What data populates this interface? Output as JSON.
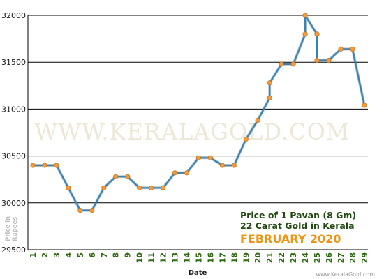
{
  "chart_data": {
    "type": "line",
    "title_lines": [
      "Price of 1 Pavan (8 Gm)",
      "22 Carat Gold in Kerala"
    ],
    "subtitle": "FEBRUARY 2020",
    "xlabel": "Date",
    "ylabel_lines": [
      "Price in",
      "Rupees"
    ],
    "ylim": [
      29500,
      32000
    ],
    "yticks": [
      "29500",
      "30000",
      "30500",
      "31000",
      "31500",
      "32000"
    ],
    "xticks": [
      "1",
      "2",
      "3",
      "4",
      "5",
      "6",
      "7",
      "8",
      "9",
      "10",
      "11",
      "12",
      "13",
      "14",
      "15",
      "16",
      "17",
      "18",
      "19",
      "20",
      "21",
      "22",
      "23",
      "24",
      "25",
      "26",
      "27",
      "28",
      "29"
    ],
    "grid": true,
    "watermark": "WWW.KERALAGOLD.COM",
    "credit": "www.KeralaGold.com",
    "colors": {
      "line": "#3a82b4",
      "marker": "#f29a3c",
      "marker_edge": "#c8751e",
      "grid": "#000000"
    },
    "series": [
      {
        "points": [
          [
            1,
            30400
          ],
          [
            2,
            30400
          ],
          [
            3,
            30400
          ],
          [
            4,
            30160
          ],
          [
            5,
            29920
          ],
          [
            6,
            29920
          ],
          [
            7,
            30160
          ],
          [
            8,
            30280
          ],
          [
            9,
            30280
          ],
          [
            10,
            30160
          ],
          [
            11,
            30160
          ],
          [
            12,
            30160
          ],
          [
            13,
            30320
          ],
          [
            14,
            30320
          ],
          [
            15,
            30480
          ],
          [
            16,
            30480
          ],
          [
            17,
            30400
          ],
          [
            18,
            30400
          ],
          [
            19,
            30680
          ],
          [
            20,
            30880
          ],
          [
            21,
            31120
          ],
          [
            21,
            31280
          ],
          [
            22,
            31480
          ],
          [
            23,
            31480
          ],
          [
            24,
            31800
          ],
          [
            24,
            32000
          ],
          [
            25,
            31800
          ],
          [
            25,
            31520
          ],
          [
            26,
            31520
          ],
          [
            27,
            31640
          ],
          [
            28,
            31640
          ],
          [
            29,
            31040
          ]
        ]
      }
    ]
  }
}
